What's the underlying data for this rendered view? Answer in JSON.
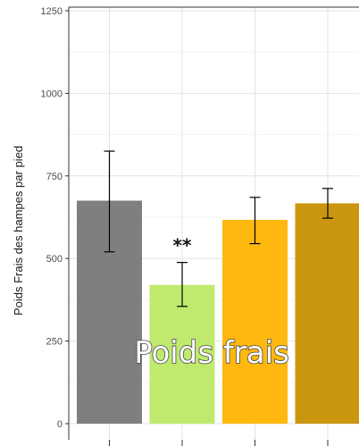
{
  "overlay_title": "Poids frais",
  "chart_data": {
    "type": "bar",
    "ylabel": "Poids Frais des hampes par pied",
    "xlabel": "",
    "ylim": [
      0,
      1250
    ],
    "yticks": [
      0,
      250,
      500,
      750,
      1000,
      1250
    ],
    "grid": true,
    "categories": [
      "",
      "",
      "",
      ""
    ],
    "values": [
      675,
      420,
      617,
      667
    ],
    "error_low": [
      520,
      355,
      545,
      622
    ],
    "error_high": [
      825,
      488,
      685,
      712
    ],
    "colors": [
      "#7f7f7f",
      "#bfea6e",
      "#ffb80f",
      "#cb960f"
    ],
    "annotations": [
      "",
      "**",
      "",
      ""
    ]
  }
}
